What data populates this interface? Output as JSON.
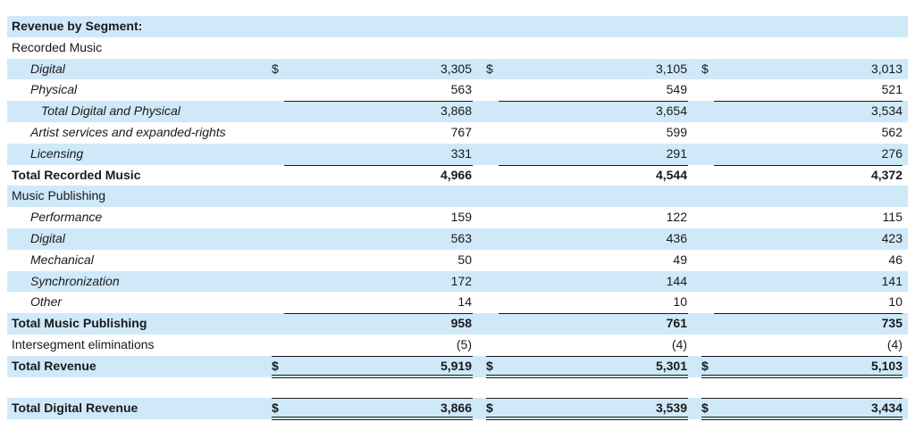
{
  "heading": "Revenue by Segment:",
  "currency_symbol": "$",
  "rows": [
    {
      "label": "Recorded Music",
      "indent": 0,
      "bold": false,
      "values": [
        "",
        "",
        ""
      ]
    },
    {
      "label": "Digital",
      "indent": 1,
      "bold": false,
      "values": [
        "3,305",
        "3,105",
        "3,013"
      ],
      "currency": true
    },
    {
      "label": "Physical",
      "indent": 1,
      "bold": false,
      "values": [
        "563",
        "549",
        "521"
      ]
    },
    {
      "label": "Total Digital and Physical",
      "indent": 2,
      "bold": false,
      "values": [
        "3,868",
        "3,654",
        "3,534"
      ]
    },
    {
      "label": "Artist services and expanded-rights",
      "indent": 1,
      "bold": false,
      "values": [
        "767",
        "599",
        "562"
      ]
    },
    {
      "label": "Licensing",
      "indent": 1,
      "bold": false,
      "values": [
        "331",
        "291",
        "276"
      ]
    },
    {
      "label": "Total Recorded Music",
      "indent": 0,
      "bold": true,
      "values": [
        "4,966",
        "4,544",
        "4,372"
      ]
    },
    {
      "label": "Music Publishing",
      "indent": 0,
      "bold": false,
      "values": [
        "",
        "",
        ""
      ]
    },
    {
      "label": "Performance",
      "indent": 1,
      "bold": false,
      "values": [
        "159",
        "122",
        "115"
      ]
    },
    {
      "label": "Digital",
      "indent": 1,
      "bold": false,
      "values": [
        "563",
        "436",
        "423"
      ]
    },
    {
      "label": "Mechanical",
      "indent": 1,
      "bold": false,
      "values": [
        "50",
        "49",
        "46"
      ]
    },
    {
      "label": "Synchronization",
      "indent": 1,
      "bold": false,
      "values": [
        "172",
        "144",
        "141"
      ]
    },
    {
      "label": "Other",
      "indent": 1,
      "bold": false,
      "values": [
        "14",
        "10",
        "10"
      ]
    },
    {
      "label": "Total Music Publishing",
      "indent": 0,
      "bold": true,
      "values": [
        "958",
        "761",
        "735"
      ]
    },
    {
      "label": "Intersegment eliminations",
      "indent": 0,
      "bold": false,
      "values": [
        "(5)",
        "(4)",
        "(4)"
      ]
    },
    {
      "label": "Total Revenue",
      "indent": 0,
      "bold": true,
      "values": [
        "5,919",
        "5,301",
        "5,103"
      ],
      "currency": true
    },
    {
      "label": "Total Digital Revenue",
      "indent": 0,
      "bold": true,
      "values": [
        "3,866",
        "3,539",
        "3,434"
      ],
      "currency": true
    }
  ]
}
